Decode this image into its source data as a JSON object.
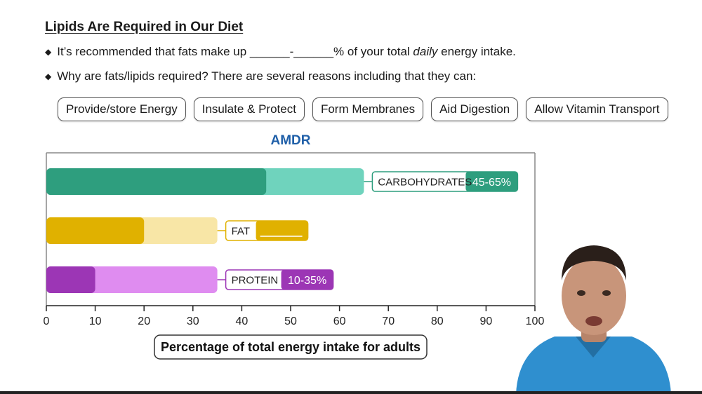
{
  "header": {
    "title": "Lipids Are Required in Our Diet",
    "bullet1_a": "It’s recommended that fats make up ",
    "bullet1_blank1": "______",
    "bullet1_dash": "-",
    "bullet1_blank2": "______",
    "bullet1_b": "% of your total ",
    "bullet1_em": "daily",
    "bullet1_c": " energy intake.",
    "bullet2": "Why are fats/lipids required? There are several reasons including that they can:"
  },
  "reasons": [
    "Provide/store Energy",
    "Insulate & Protect",
    "Form Membranes",
    "Aid Digestion",
    "Allow Vitamin Transport"
  ],
  "icons": {
    "bullet": "diamond-bullet-icon"
  },
  "colors": {
    "carb_dark": "#2e9e7e",
    "carb_light": "#6fd3bd",
    "fat_dark": "#e0b100",
    "fat_light": "#f8e6a6",
    "protein_dark": "#9c36b5",
    "protein_light": "#df8cf0",
    "title_blue": "#1f5fa8"
  },
  "chart_data": {
    "type": "bar",
    "orientation": "horizontal",
    "title": "AMDR",
    "xlabel": "Percentage of total energy intake for adults",
    "xlim": [
      0,
      100
    ],
    "xticks": [
      0,
      10,
      20,
      30,
      40,
      50,
      60,
      70,
      80,
      90,
      100
    ],
    "categories": [
      "CARBOHYDRATES",
      "FAT",
      "PROTEIN"
    ],
    "ranges": [
      [
        45,
        65
      ],
      [
        20,
        35
      ],
      [
        10,
        35
      ]
    ],
    "range_labels": [
      "45-65%",
      "",
      "10-35%"
    ]
  }
}
